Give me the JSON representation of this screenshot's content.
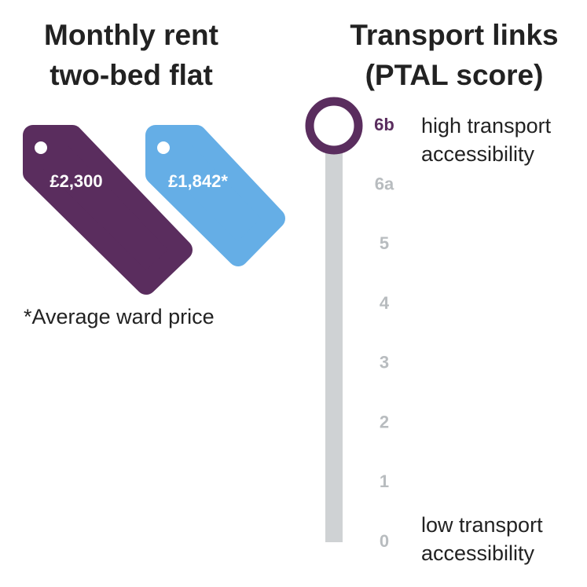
{
  "rent": {
    "title": [
      "Monthly rent",
      "two-bed flat"
    ],
    "tags": [
      "£2,300",
      "£1,842*"
    ],
    "footnote": "*Average ward price"
  },
  "transport": {
    "title": [
      "Transport links",
      "(PTAL score)"
    ],
    "levels": [
      "6b",
      "6a",
      "5",
      "4",
      "3",
      "2",
      "1",
      "0"
    ],
    "high_label": [
      "high transport",
      "accessibility"
    ],
    "low_label": [
      "low transport",
      "accessibility"
    ]
  }
}
